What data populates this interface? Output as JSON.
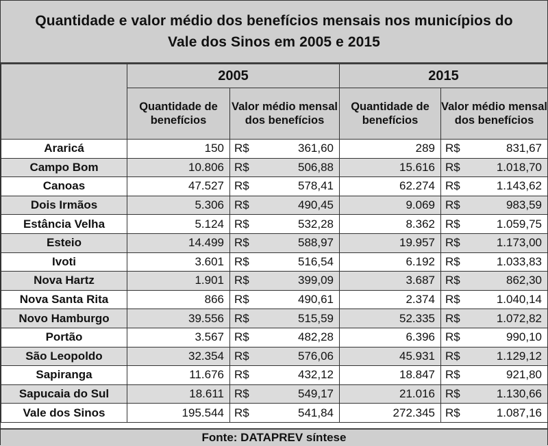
{
  "title_line1": "Quantidade e valor médio dos benefícios mensais nos municípios do",
  "title_line2": "Vale dos Sinos em 2005 e 2015",
  "years": [
    "2005",
    "2015"
  ],
  "col_qty": "Quantidade de benefícios",
  "col_val": "Valor médio mensal dos benefícios",
  "currency": "R$",
  "rows": [
    {
      "name": "Araricá",
      "q2005": "150",
      "v2005": "361,60",
      "q2015": "289",
      "v2015": "831,67"
    },
    {
      "name": "Campo Bom",
      "q2005": "10.806",
      "v2005": "506,88",
      "q2015": "15.616",
      "v2015": "1.018,70"
    },
    {
      "name": "Canoas",
      "q2005": "47.527",
      "v2005": "578,41",
      "q2015": "62.274",
      "v2015": "1.143,62"
    },
    {
      "name": "Dois Irmãos",
      "q2005": "5.306",
      "v2005": "490,45",
      "q2015": "9.069",
      "v2015": "983,59"
    },
    {
      "name": "Estância Velha",
      "q2005": "5.124",
      "v2005": "532,28",
      "q2015": "8.362",
      "v2015": "1.059,75"
    },
    {
      "name": "Esteio",
      "q2005": "14.499",
      "v2005": "588,97",
      "q2015": "19.957",
      "v2015": "1.173,00"
    },
    {
      "name": "Ivoti",
      "q2005": "3.601",
      "v2005": "516,54",
      "q2015": "6.192",
      "v2015": "1.033,83"
    },
    {
      "name": "Nova Hartz",
      "q2005": "1.901",
      "v2005": "399,09",
      "q2015": "3.687",
      "v2015": "862,30"
    },
    {
      "name": "Nova Santa Rita",
      "q2005": "866",
      "v2005": "490,61",
      "q2015": "2.374",
      "v2015": "1.040,14"
    },
    {
      "name": "Novo Hamburgo",
      "q2005": "39.556",
      "v2005": "515,59",
      "q2015": "52.335",
      "v2015": "1.072,82"
    },
    {
      "name": "Portão",
      "q2005": "3.567",
      "v2005": "482,28",
      "q2015": "6.396",
      "v2015": "990,10"
    },
    {
      "name": "São Leopoldo",
      "q2005": "32.354",
      "v2005": "576,06",
      "q2015": "45.931",
      "v2015": "1.129,12"
    },
    {
      "name": "Sapiranga",
      "q2005": "11.676",
      "v2005": "432,12",
      "q2015": "18.847",
      "v2015": "921,80"
    },
    {
      "name": "Sapucaia do Sul",
      "q2005": "18.611",
      "v2005": "549,17",
      "q2015": "21.016",
      "v2015": "1.130,66"
    },
    {
      "name": "Vale dos Sinos",
      "q2005": "195.544",
      "v2005": "541,84",
      "q2015": "272.345",
      "v2015": "1.087,16"
    }
  ],
  "footer": "Fonte: DATAPREV  síntese"
}
